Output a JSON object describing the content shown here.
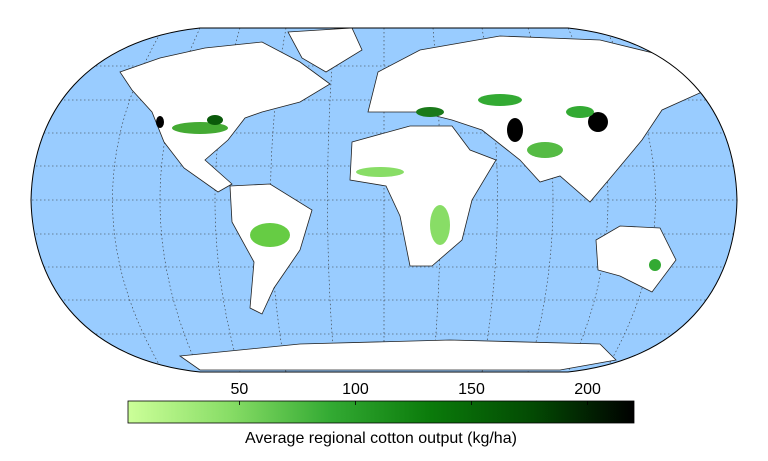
{
  "colorbar": {
    "label": "Average regional cotton output (kg/ha)",
    "lim": [
      2,
      220
    ],
    "ticks": [
      50,
      100,
      150,
      200
    ],
    "colors": [
      "#ccff99",
      "#88dd66",
      "#33aa33",
      "#0a7a0a",
      "#034a03",
      "#000000"
    ]
  }
}
